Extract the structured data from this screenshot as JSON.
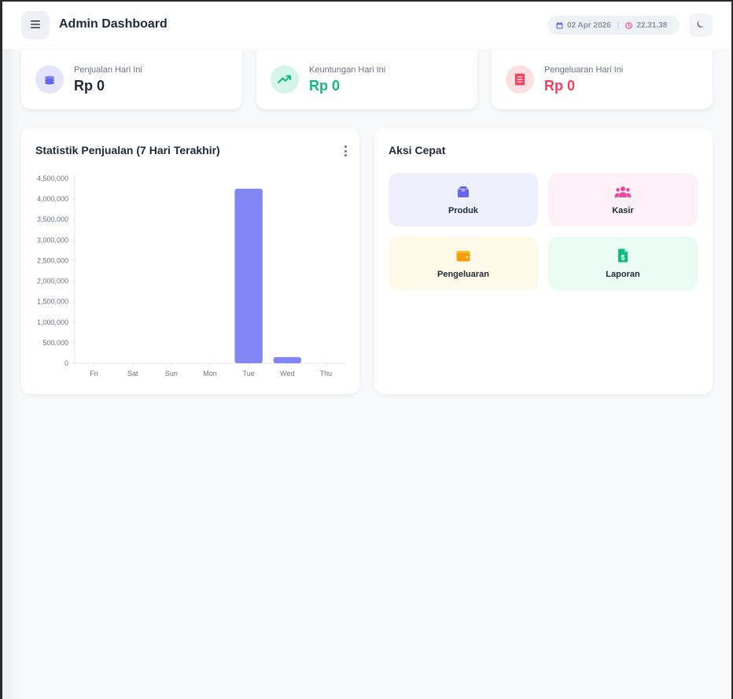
{
  "header": {
    "title": "Admin Dashboard",
    "date": "02 Apr 2026",
    "time": "22.31.38",
    "separator": "|"
  },
  "stats": [
    {
      "label": "Penjualan Hari Ini",
      "value": "Rp 0",
      "color": "#1f2937",
      "icon": "coins-icon",
      "icon_color": "#6366f1",
      "icon_bg": "#e4e4fb"
    },
    {
      "label": "Keuntungan Hari Ini",
      "value": "Rp 0",
      "color": "#10b981",
      "icon": "trending-up-icon",
      "icon_color": "#10b981",
      "icon_bg": "#d6f5ea"
    },
    {
      "label": "Pengeluaran Hari Ini",
      "value": "Rp 0",
      "color": "#f43f5e",
      "icon": "receipt-icon",
      "icon_color": "#f43f5e",
      "icon_bg": "#fde0e4"
    }
  ],
  "sales_panel": {
    "title": "Statistik Penjualan (7 Hari Terakhir)"
  },
  "chart_data": {
    "type": "bar",
    "categories": [
      "Fri",
      "Sat",
      "Sun",
      "Mon",
      "Tue",
      "Wed",
      "Thu"
    ],
    "values": [
      0,
      0,
      0,
      0,
      4250000,
      150000,
      0
    ],
    "ylim": [
      0,
      4500000
    ],
    "yticks": [
      0,
      500000,
      1000000,
      1500000,
      2000000,
      2500000,
      3000000,
      3500000,
      4000000,
      4500000
    ],
    "ytick_labels": [
      "0",
      "500,000",
      "1,000,000",
      "1,500,000",
      "2,000,000",
      "2,500,000",
      "3,000,000",
      "3,500,000",
      "4,000,000",
      "4,500,000"
    ],
    "bar_color": "#8286f4",
    "grid": false,
    "legend": "none"
  },
  "quick_actions": {
    "title": "Aksi Cepat",
    "items": [
      {
        "label": "Produk",
        "icon": "box-icon",
        "bg": "#eef1fd",
        "icon_color": "#6366f1"
      },
      {
        "label": "Kasir",
        "icon": "users-icon",
        "bg": "#fdf0f6",
        "icon_color": "#ec4899"
      },
      {
        "label": "Pengeluaran",
        "icon": "wallet-icon",
        "bg": "#fef9e8",
        "icon_color": "#f59e0b"
      },
      {
        "label": "Laporan",
        "icon": "file-invoice-icon",
        "bg": "#eafbf3",
        "icon_color": "#10b981"
      }
    ]
  }
}
